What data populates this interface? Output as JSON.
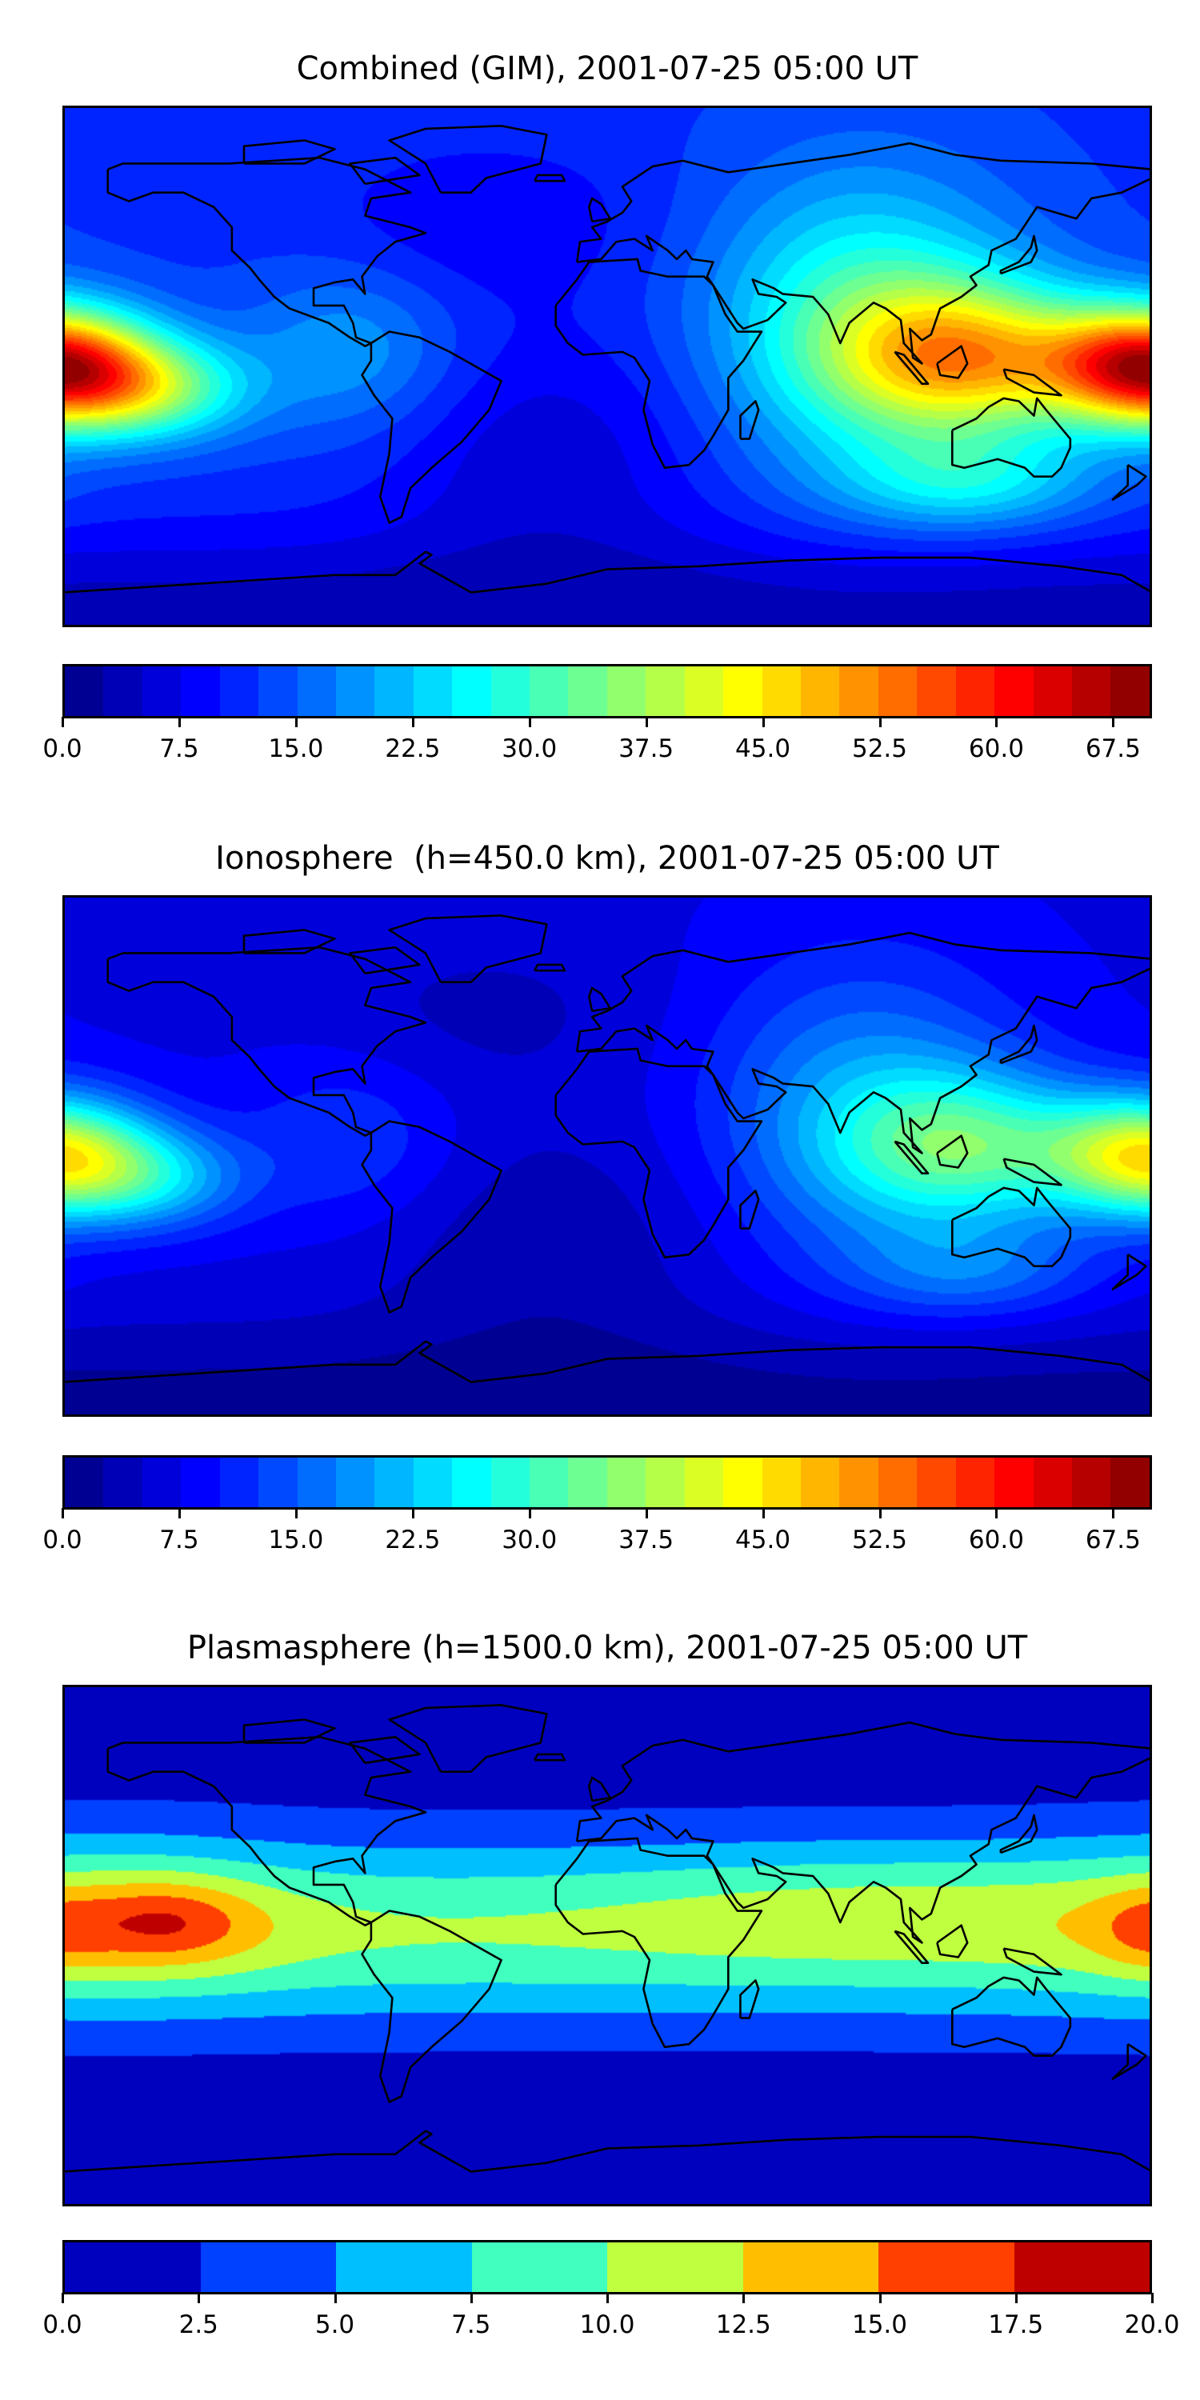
{
  "maps": [
    {
      "id": "combined",
      "title": "Combined (GIM), 2001-07-25 05:00 UT",
      "colorbar": {
        "colormap": "jet",
        "min": 0.0,
        "max": 70.0,
        "step": 2.5,
        "tick_labels": [
          "0.0",
          "7.5",
          "15.0",
          "22.5",
          "30.0",
          "37.5",
          "45.0",
          "52.5",
          "60.0",
          "67.5"
        ]
      }
    },
    {
      "id": "ionosphere",
      "title": "Ionosphere  (h=450.0 km), 2001-07-25 05:00 UT",
      "colorbar": {
        "colormap": "jet",
        "min": 0.0,
        "max": 70.0,
        "step": 2.5,
        "tick_labels": [
          "0.0",
          "7.5",
          "15.0",
          "22.5",
          "30.0",
          "37.5",
          "45.0",
          "52.5",
          "60.0",
          "67.5"
        ]
      }
    },
    {
      "id": "plasmasphere",
      "title": "Plasmasphere (h=1500.0 km), 2001-07-25 05:00 UT",
      "colorbar": {
        "colormap": "jet",
        "min": 0.0,
        "max": 20.0,
        "step": 2.5,
        "tick_labels": [
          "0.0",
          "2.5",
          "5.0",
          "7.5",
          "10.0",
          "12.5",
          "15.0",
          "17.5",
          "20.0"
        ]
      }
    }
  ]
}
